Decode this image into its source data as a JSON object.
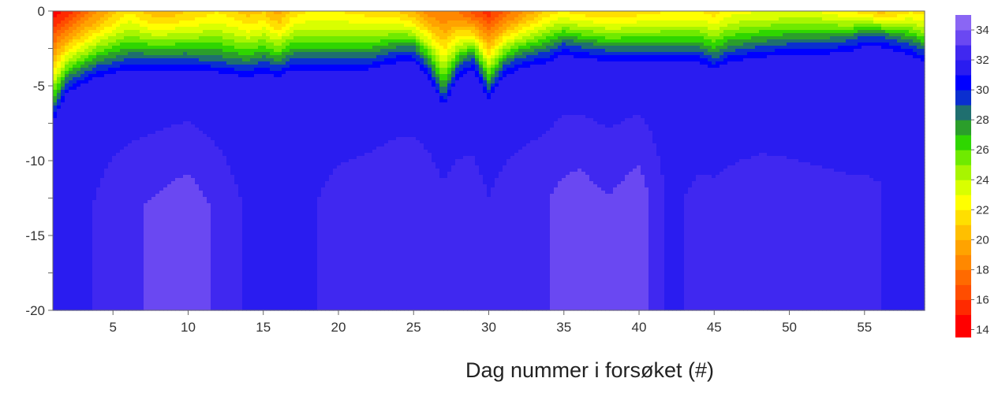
{
  "chart_data": {
    "type": "heatmap",
    "title": "",
    "xlabel": "Dag nummer i forsøket (#)",
    "ylabel": "",
    "xlim": [
      1,
      59
    ],
    "ylim": [
      -20,
      0
    ],
    "x_ticks": [
      5,
      10,
      15,
      20,
      25,
      30,
      35,
      40,
      45,
      50,
      55
    ],
    "y_ticks": [
      0,
      -5,
      -10,
      -15,
      -20
    ],
    "y_minor_step": 2.5,
    "grid": false,
    "colorbar": {
      "ticks": [
        14,
        16,
        18,
        20,
        22,
        24,
        26,
        28,
        30,
        32,
        34
      ],
      "range": [
        13.5,
        35
      ],
      "levels": [
        {
          "min": 13.5,
          "color": "#ff0000"
        },
        {
          "min": 15,
          "color": "#ff2a00"
        },
        {
          "min": 16,
          "color": "#ff4d00"
        },
        {
          "min": 17,
          "color": "#ff6a00"
        },
        {
          "min": 18,
          "color": "#ff8800"
        },
        {
          "min": 19,
          "color": "#ffa300"
        },
        {
          "min": 20,
          "color": "#ffbf00"
        },
        {
          "min": 21,
          "color": "#ffdf00"
        },
        {
          "min": 22,
          "color": "#ffff00"
        },
        {
          "min": 23,
          "color": "#d9ff00"
        },
        {
          "min": 24,
          "color": "#a8f500"
        },
        {
          "min": 25,
          "color": "#6fea00"
        },
        {
          "min": 26,
          "color": "#2fd600"
        },
        {
          "min": 27,
          "color": "#2b9e2b"
        },
        {
          "min": 28,
          "color": "#1f6f6f"
        },
        {
          "min": 29,
          "color": "#0a2fd0"
        },
        {
          "min": 30,
          "color": "#0000ff"
        },
        {
          "min": 31,
          "color": "#2a1cf0"
        },
        {
          "min": 32,
          "color": "#4028f0"
        },
        {
          "min": 33,
          "color": "#6a48f2"
        },
        {
          "min": 34,
          "color": "#8a66f4"
        }
      ]
    },
    "surface": {
      "x_knots": [
        1,
        2,
        4,
        6,
        8,
        10,
        12,
        14,
        15,
        16,
        17,
        18,
        20,
        22,
        24,
        25,
        26,
        27,
        28,
        29,
        30,
        31,
        32,
        34,
        35,
        36,
        38,
        40,
        42,
        44,
        45,
        46,
        48,
        50,
        52,
        54,
        55,
        56,
        57,
        58,
        59
      ],
      "surface_temp": [
        14.5,
        15.5,
        19,
        22,
        20,
        21,
        22,
        20.5,
        21,
        19.5,
        21.5,
        22,
        22,
        21.5,
        21,
        20,
        18.5,
        18,
        18,
        16.5,
        15.5,
        17,
        18.5,
        21.5,
        22,
        21.5,
        21,
        21.5,
        22,
        22,
        21.5,
        22.5,
        23,
        23,
        23,
        22,
        21.5,
        20.5,
        21,
        22,
        21.5
      ],
      "mixed_depth": [
        6.5,
        4.5,
        3.5,
        3,
        3,
        3,
        3.2,
        3.5,
        3.2,
        3.5,
        3,
        3,
        3,
        3,
        2.5,
        2.5,
        3.5,
        5.5,
        3.5,
        3,
        5,
        3.5,
        3,
        2.5,
        2,
        2.2,
        2.5,
        2.5,
        2.5,
        2.5,
        3,
        2.5,
        2.2,
        2,
        2,
        1.8,
        1.5,
        1.5,
        1.8,
        2,
        2.5
      ],
      "deep_temp_profile": [
        [
          1,
          31.0
        ],
        [
          5,
          32.6
        ],
        [
          8,
          33.2
        ],
        [
          10,
          33.6
        ],
        [
          12,
          32.8
        ],
        [
          15,
          31.4
        ],
        [
          16,
          31.0
        ],
        [
          17,
          31.6
        ],
        [
          20,
          32.4
        ],
        [
          24,
          32.8
        ],
        [
          27,
          32.8
        ],
        [
          30,
          32.4
        ],
        [
          33,
          32.8
        ],
        [
          36,
          33.4
        ],
        [
          38,
          33.0
        ],
        [
          40,
          33.6
        ],
        [
          42,
          31.8
        ],
        [
          44,
          32.2
        ],
        [
          48,
          32.4
        ],
        [
          52,
          32.2
        ],
        [
          56,
          32.0
        ],
        [
          59,
          31.8
        ]
      ]
    }
  }
}
